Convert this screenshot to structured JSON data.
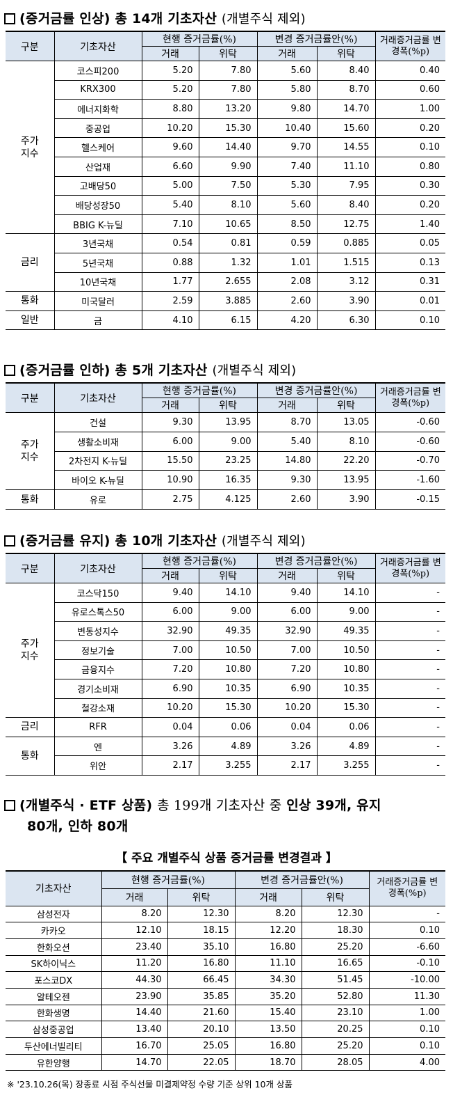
{
  "section1": {
    "box_glyph": "☐",
    "title_bold": "(증거금률 인상) 총 14개 기초자산",
    "title_note": "(개별주식 제외)",
    "headers": {
      "category": "구분",
      "asset": "기초자산",
      "current": "현행 증거금률(%)",
      "proposed": "변경 증거금률안(%)",
      "change": "거래증거금률 변경폭(%p)",
      "trade": "거래",
      "trust": "위탁"
    },
    "groups": [
      {
        "category": "주가\n지수",
        "rows": [
          {
            "asset": "코스피200",
            "cur_trade": "5.20",
            "cur_trust": "7.80",
            "new_trade": "5.60",
            "new_trust": "8.40",
            "change": "0.40"
          },
          {
            "asset": "KRX300",
            "cur_trade": "5.20",
            "cur_trust": "7.80",
            "new_trade": "5.80",
            "new_trust": "8.70",
            "change": "0.60"
          },
          {
            "asset": "에너지화학",
            "cur_trade": "8.80",
            "cur_trust": "13.20",
            "new_trade": "9.80",
            "new_trust": "14.70",
            "change": "1.00"
          },
          {
            "asset": "중공업",
            "cur_trade": "10.20",
            "cur_trust": "15.30",
            "new_trade": "10.40",
            "new_trust": "15.60",
            "change": "0.20"
          },
          {
            "asset": "헬스케어",
            "cur_trade": "9.60",
            "cur_trust": "14.40",
            "new_trade": "9.70",
            "new_trust": "14.55",
            "change": "0.10"
          },
          {
            "asset": "산업재",
            "cur_trade": "6.60",
            "cur_trust": "9.90",
            "new_trade": "7.40",
            "new_trust": "11.10",
            "change": "0.80"
          },
          {
            "asset": "고배당50",
            "cur_trade": "5.00",
            "cur_trust": "7.50",
            "new_trade": "5.30",
            "new_trust": "7.95",
            "change": "0.30"
          },
          {
            "asset": "배당성장50",
            "cur_trade": "5.40",
            "cur_trust": "8.10",
            "new_trade": "5.60",
            "new_trust": "8.40",
            "change": "0.20"
          },
          {
            "asset": "BBIG K-뉴딜",
            "cur_trade": "7.10",
            "cur_trust": "10.65",
            "new_trade": "8.50",
            "new_trust": "12.75",
            "change": "1.40"
          }
        ]
      },
      {
        "category": "금리",
        "rows": [
          {
            "asset": "3년국채",
            "cur_trade": "0.54",
            "cur_trust": "0.81",
            "new_trade": "0.59",
            "new_trust": "0.885",
            "change": "0.05"
          },
          {
            "asset": "5년국채",
            "cur_trade": "0.88",
            "cur_trust": "1.32",
            "new_trade": "1.01",
            "new_trust": "1.515",
            "change": "0.13"
          },
          {
            "asset": "10년국채",
            "cur_trade": "1.77",
            "cur_trust": "2.655",
            "new_trade": "2.08",
            "new_trust": "3.12",
            "change": "0.31"
          }
        ]
      },
      {
        "category": "통화",
        "rows": [
          {
            "asset": "미국달러",
            "cur_trade": "2.59",
            "cur_trust": "3.885",
            "new_trade": "2.60",
            "new_trust": "3.90",
            "change": "0.01"
          }
        ]
      },
      {
        "category": "일반",
        "rows": [
          {
            "asset": "금",
            "cur_trade": "4.10",
            "cur_trust": "6.15",
            "new_trade": "4.20",
            "new_trust": "6.30",
            "change": "0.10"
          }
        ]
      }
    ]
  },
  "section2": {
    "box_glyph": "☐",
    "title_bold": "(증거금률 인하) 총 5개 기초자산",
    "title_note": "(개별주식 제외)",
    "groups": [
      {
        "category": "주가\n지수",
        "rows": [
          {
            "asset": "건설",
            "cur_trade": "9.30",
            "cur_trust": "13.95",
            "new_trade": "8.70",
            "new_trust": "13.05",
            "change": "-0.60"
          },
          {
            "asset": "생활소비재",
            "cur_trade": "6.00",
            "cur_trust": "9.00",
            "new_trade": "5.40",
            "new_trust": "8.10",
            "change": "-0.60"
          },
          {
            "asset": "2차전지 K-뉴딜",
            "cur_trade": "15.50",
            "cur_trust": "23.25",
            "new_trade": "14.80",
            "new_trust": "22.20",
            "change": "-0.70"
          },
          {
            "asset": "바이오 K-뉴딜",
            "cur_trade": "10.90",
            "cur_trust": "16.35",
            "new_trade": "9.30",
            "new_trust": "13.95",
            "change": "-1.60"
          }
        ]
      },
      {
        "category": "통화",
        "rows": [
          {
            "asset": "유로",
            "cur_trade": "2.75",
            "cur_trust": "4.125",
            "new_trade": "2.60",
            "new_trust": "3.90",
            "change": "-0.15"
          }
        ]
      }
    ]
  },
  "section3": {
    "box_glyph": "☐",
    "title_bold": "(증거금률 유지) 총 10개 기초자산",
    "title_note": "(개별주식 제외)",
    "groups": [
      {
        "category": "주가\n지수",
        "rows": [
          {
            "asset": "코스닥150",
            "cur_trade": "9.40",
            "cur_trust": "14.10",
            "new_trade": "9.40",
            "new_trust": "14.10",
            "change": "-"
          },
          {
            "asset": "유로스톡스50",
            "cur_trade": "6.00",
            "cur_trust": "9.00",
            "new_trade": "6.00",
            "new_trust": "9.00",
            "change": "-"
          },
          {
            "asset": "변동성지수",
            "cur_trade": "32.90",
            "cur_trust": "49.35",
            "new_trade": "32.90",
            "new_trust": "49.35",
            "change": "-"
          },
          {
            "asset": "정보기술",
            "cur_trade": "7.00",
            "cur_trust": "10.50",
            "new_trade": "7.00",
            "new_trust": "10.50",
            "change": "-"
          },
          {
            "asset": "금융지수",
            "cur_trade": "7.20",
            "cur_trust": "10.80",
            "new_trade": "7.20",
            "new_trust": "10.80",
            "change": "-"
          },
          {
            "asset": "경기소비재",
            "cur_trade": "6.90",
            "cur_trust": "10.35",
            "new_trade": "6.90",
            "new_trust": "10.35",
            "change": "-"
          },
          {
            "asset": "철강소재",
            "cur_trade": "10.20",
            "cur_trust": "15.30",
            "new_trade": "10.20",
            "new_trust": "15.30",
            "change": "-"
          }
        ]
      },
      {
        "category": "금리",
        "rows": [
          {
            "asset": "RFR",
            "cur_trade": "0.04",
            "cur_trust": "0.06",
            "new_trade": "0.04",
            "new_trust": "0.06",
            "change": "-"
          }
        ]
      },
      {
        "category": "통화",
        "rows": [
          {
            "asset": "엔",
            "cur_trade": "3.26",
            "cur_trust": "4.89",
            "new_trade": "3.26",
            "new_trust": "4.89",
            "change": "-"
          },
          {
            "asset": "위안",
            "cur_trade": "2.17",
            "cur_trust": "3.255",
            "new_trade": "2.17",
            "new_trust": "3.255",
            "change": "-"
          }
        ]
      }
    ]
  },
  "section4": {
    "box_glyph": "☐",
    "title_bold": "(개별주식 · ETF 상품)",
    "title_mid": "총 199개 기초자산 중",
    "title_tail": "인상 39개, 유지",
    "title_line2": "80개, 인하 80개",
    "subtitle": "【 주요 개별주식 상품 증거금률 변경결과 】",
    "rows": [
      {
        "asset": "삼성전자",
        "cur_trade": "8.20",
        "cur_trust": "12.30",
        "new_trade": "8.20",
        "new_trust": "12.30",
        "change": "-"
      },
      {
        "asset": "카카오",
        "cur_trade": "12.10",
        "cur_trust": "18.15",
        "new_trade": "12.20",
        "new_trust": "18.30",
        "change": "0.10"
      },
      {
        "asset": "한화오션",
        "cur_trade": "23.40",
        "cur_trust": "35.10",
        "new_trade": "16.80",
        "new_trust": "25.20",
        "change": "-6.60"
      },
      {
        "asset": "SK하이닉스",
        "cur_trade": "11.20",
        "cur_trust": "16.80",
        "new_trade": "11.10",
        "new_trust": "16.65",
        "change": "-0.10"
      },
      {
        "asset": "포스코DX",
        "cur_trade": "44.30",
        "cur_trust": "66.45",
        "new_trade": "34.30",
        "new_trust": "51.45",
        "change": "-10.00"
      },
      {
        "asset": "알테오젠",
        "cur_trade": "23.90",
        "cur_trust": "35.85",
        "new_trade": "35.20",
        "new_trust": "52.80",
        "change": "11.30"
      },
      {
        "asset": "한화생명",
        "cur_trade": "14.40",
        "cur_trust": "21.60",
        "new_trade": "15.40",
        "new_trust": "23.10",
        "change": "1.00"
      },
      {
        "asset": "삼성중공업",
        "cur_trade": "13.40",
        "cur_trust": "20.10",
        "new_trade": "13.50",
        "new_trust": "20.25",
        "change": "0.10"
      },
      {
        "asset": "두산에너빌리티",
        "cur_trade": "16.70",
        "cur_trust": "25.05",
        "new_trade": "16.80",
        "new_trust": "25.20",
        "change": "0.10"
      },
      {
        "asset": "유한양행",
        "cur_trade": "14.70",
        "cur_trust": "22.05",
        "new_trade": "18.70",
        "new_trust": "28.05",
        "change": "4.00"
      }
    ],
    "footnote": "※ '23.10.26(목) 장종료 시점 주식선물 미결제약정 수량 기준 상위 10개 상품"
  }
}
